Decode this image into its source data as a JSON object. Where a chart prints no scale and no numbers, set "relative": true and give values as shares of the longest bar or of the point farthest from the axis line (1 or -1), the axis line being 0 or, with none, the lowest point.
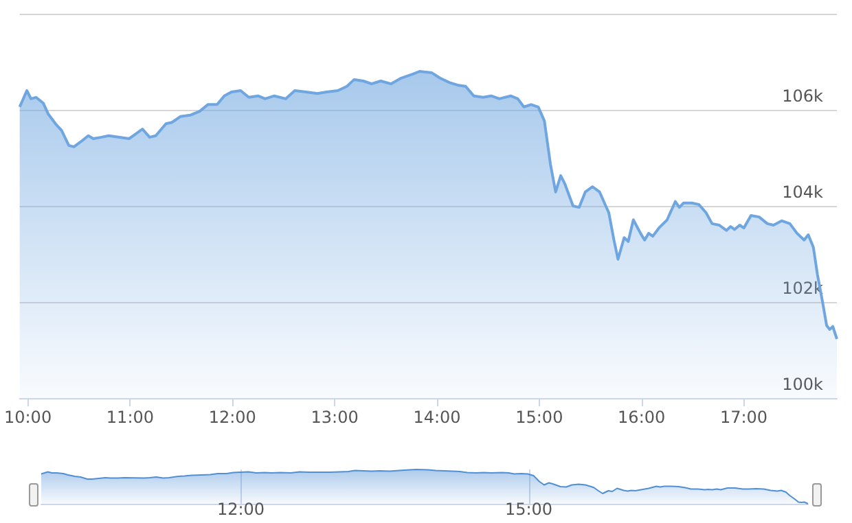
{
  "chart_data": [
    {
      "type": "area",
      "x": [
        9.92,
        9.99,
        10.03,
        10.08,
        10.15,
        10.2,
        10.27,
        10.33,
        10.4,
        10.45,
        10.52,
        10.59,
        10.64,
        10.72,
        10.79,
        10.99,
        11.05,
        11.12,
        11.19,
        11.25,
        11.35,
        11.41,
        11.49,
        11.59,
        11.68,
        11.76,
        11.85,
        11.92,
        11.99,
        12.08,
        12.16,
        12.25,
        12.32,
        12.41,
        12.52,
        12.61,
        12.72,
        12.83,
        12.92,
        13.03,
        13.12,
        13.19,
        13.28,
        13.36,
        13.45,
        13.55,
        13.65,
        13.76,
        13.83,
        13.95,
        14.03,
        14.12,
        14.21,
        14.28,
        14.36,
        14.45,
        14.53,
        14.61,
        14.72,
        14.79,
        14.85,
        14.92,
        14.99,
        15.05,
        15.11,
        15.16,
        15.21,
        15.25,
        15.33,
        15.39,
        15.45,
        15.52,
        15.59,
        15.65,
        15.68,
        15.73,
        15.77,
        15.83,
        15.87,
        15.92,
        15.99,
        16.03,
        16.07,
        16.11,
        16.17,
        16.25,
        16.33,
        16.37,
        16.41,
        16.49,
        16.56,
        16.63,
        16.69,
        16.76,
        16.83,
        16.87,
        16.91,
        16.96,
        17.0,
        17.07,
        17.15,
        17.23,
        17.29,
        17.37,
        17.45,
        17.52,
        17.59,
        17.63,
        17.68,
        17.72,
        17.77,
        17.81,
        17.84,
        17.87,
        17.91
      ],
      "series": [
        {
          "color": "#6fa6e0",
          "values": [
            106060,
            106400,
            106230,
            106260,
            106140,
            105910,
            105710,
            105570,
            105260,
            105230,
            105340,
            105460,
            105400,
            105430,
            105460,
            105400,
            105490,
            105600,
            105430,
            105460,
            105710,
            105740,
            105860,
            105890,
            105970,
            106110,
            106110,
            106290,
            106370,
            106400,
            106260,
            106290,
            106230,
            106290,
            106230,
            106400,
            106370,
            106340,
            106370,
            106400,
            106490,
            106630,
            106600,
            106540,
            106600,
            106540,
            106660,
            106740,
            106800,
            106770,
            106660,
            106570,
            106510,
            106490,
            106290,
            106260,
            106290,
            106230,
            106290,
            106230,
            106060,
            106110,
            106060,
            105770,
            104860,
            104290,
            104630,
            104460,
            104000,
            103970,
            104290,
            104400,
            104290,
            104000,
            103860,
            103290,
            102890,
            103340,
            103260,
            103710,
            103430,
            103290,
            103430,
            103370,
            103540,
            103710,
            104090,
            103970,
            104060,
            104060,
            104030,
            103860,
            103630,
            103600,
            103490,
            103570,
            103510,
            103600,
            103540,
            103800,
            103770,
            103630,
            103600,
            103690,
            103630,
            103430,
            103290,
            103400,
            103140,
            102570,
            102000,
            101510,
            101430,
            101490,
            101230
          ]
        }
      ],
      "xlim": [
        9.92,
        17.91
      ],
      "xticks": [
        {
          "value": 10,
          "label": "10:00"
        },
        {
          "value": 11,
          "label": "11:00"
        },
        {
          "value": 12,
          "label": "12:00"
        },
        {
          "value": 13,
          "label": "13:00"
        },
        {
          "value": 14,
          "label": "14:00"
        },
        {
          "value": 15,
          "label": "15:00"
        },
        {
          "value": 16,
          "label": "16:00"
        },
        {
          "value": 17,
          "label": "17:00"
        }
      ],
      "ylim": [
        100000,
        108000
      ],
      "yticks": [
        {
          "value": 100000,
          "label": "100k"
        },
        {
          "value": 102000,
          "label": "102k"
        },
        {
          "value": 104000,
          "label": "104k"
        },
        {
          "value": 106000,
          "label": "106k"
        },
        {
          "value": 108000,
          "label": null
        }
      ],
      "grid": "y"
    },
    {
      "type": "area",
      "relative": true,
      "x": [
        9.92,
        9.99,
        10.03,
        10.08,
        10.15,
        10.2,
        10.27,
        10.33,
        10.4,
        10.45,
        10.52,
        10.59,
        10.64,
        10.72,
        10.79,
        10.99,
        11.05,
        11.12,
        11.19,
        11.25,
        11.35,
        11.41,
        11.49,
        11.59,
        11.68,
        11.76,
        11.85,
        11.92,
        11.99,
        12.08,
        12.16,
        12.25,
        12.32,
        12.41,
        12.52,
        12.61,
        12.72,
        12.83,
        12.92,
        13.03,
        13.12,
        13.19,
        13.28,
        13.36,
        13.45,
        13.55,
        13.65,
        13.76,
        13.83,
        13.95,
        14.03,
        14.12,
        14.21,
        14.28,
        14.36,
        14.45,
        14.53,
        14.61,
        14.72,
        14.79,
        14.85,
        14.92,
        14.99,
        15.05,
        15.11,
        15.16,
        15.21,
        15.25,
        15.33,
        15.39,
        15.45,
        15.52,
        15.59,
        15.65,
        15.68,
        15.73,
        15.77,
        15.83,
        15.87,
        15.92,
        15.99,
        16.03,
        16.07,
        16.11,
        16.17,
        16.25,
        16.33,
        16.37,
        16.41,
        16.49,
        16.56,
        16.63,
        16.69,
        16.76,
        16.83,
        16.87,
        16.91,
        16.96,
        17.0,
        17.07,
        17.15,
        17.23,
        17.29,
        17.37,
        17.45,
        17.52,
        17.59,
        17.63,
        17.68,
        17.72,
        17.77,
        17.81,
        17.84,
        17.87,
        17.91
      ],
      "series": [
        {
          "color": "#4f8fd6",
          "values": [
            0.87,
            0.93,
            0.9,
            0.9,
            0.88,
            0.84,
            0.8,
            0.78,
            0.72,
            0.72,
            0.74,
            0.76,
            0.75,
            0.75,
            0.76,
            0.75,
            0.76,
            0.78,
            0.75,
            0.76,
            0.8,
            0.81,
            0.83,
            0.84,
            0.85,
            0.88,
            0.88,
            0.91,
            0.92,
            0.93,
            0.9,
            0.91,
            0.9,
            0.91,
            0.9,
            0.93,
            0.92,
            0.92,
            0.92,
            0.93,
            0.94,
            0.97,
            0.96,
            0.95,
            0.96,
            0.95,
            0.97,
            0.99,
            1,
            0.99,
            0.97,
            0.96,
            0.95,
            0.94,
            0.91,
            0.9,
            0.91,
            0.9,
            0.91,
            0.9,
            0.87,
            0.88,
            0.87,
            0.82,
            0.65,
            0.55,
            0.61,
            0.58,
            0.5,
            0.49,
            0.55,
            0.57,
            0.55,
            0.5,
            0.47,
            0.37,
            0.3,
            0.38,
            0.36,
            0.45,
            0.39,
            0.37,
            0.39,
            0.38,
            0.41,
            0.45,
            0.51,
            0.49,
            0.51,
            0.51,
            0.5,
            0.47,
            0.43,
            0.43,
            0.41,
            0.42,
            0.41,
            0.43,
            0.41,
            0.46,
            0.46,
            0.43,
            0.43,
            0.44,
            0.43,
            0.39,
            0.37,
            0.39,
            0.34,
            0.24,
            0.14,
            0.05,
            0.04,
            0.05,
            0
          ]
        }
      ],
      "xlim": [
        9.92,
        17.91
      ],
      "xticks": [
        {
          "value": 12,
          "label": "12:00"
        },
        {
          "value": 15,
          "label": "15:00"
        }
      ],
      "tick_labels": "x",
      "grid": "x"
    }
  ]
}
